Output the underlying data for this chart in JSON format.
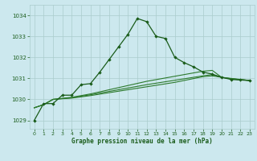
{
  "title": "Graphe pression niveau de la mer (hPa)",
  "bg_color": "#cce8ee",
  "grid_color": "#aacccc",
  "line_color_main": "#1a5c1a",
  "line_color_aux": "#2d7a2d",
  "xlim": [
    -0.5,
    23.5
  ],
  "ylim": [
    1028.6,
    1034.5
  ],
  "yticks": [
    1029,
    1030,
    1031,
    1032,
    1033,
    1034
  ],
  "xticks": [
    0,
    1,
    2,
    3,
    4,
    5,
    6,
    7,
    8,
    9,
    10,
    11,
    12,
    13,
    14,
    15,
    16,
    17,
    18,
    19,
    20,
    21,
    22,
    23
  ],
  "series1_x": [
    0,
    1,
    2,
    3,
    4,
    5,
    6,
    7,
    8,
    9,
    10,
    11,
    12,
    13,
    14,
    15,
    16,
    17,
    18,
    19,
    20,
    21,
    22,
    23
  ],
  "series1_y": [
    1029.0,
    1029.8,
    1029.8,
    1030.2,
    1030.2,
    1030.7,
    1030.75,
    1031.3,
    1031.9,
    1032.5,
    1033.1,
    1033.85,
    1033.7,
    1033.0,
    1032.9,
    1032.0,
    1031.75,
    1031.55,
    1031.3,
    1031.2,
    1031.05,
    1030.95,
    1030.92,
    1030.9
  ],
  "series2_x": [
    0,
    1,
    2,
    3,
    4,
    5,
    6,
    7,
    8,
    9,
    10,
    11,
    12,
    13,
    14,
    15,
    16,
    17,
    18,
    19,
    20,
    21,
    22,
    23
  ],
  "series2_y": [
    1029.6,
    1029.75,
    1030.0,
    1030.05,
    1030.1,
    1030.18,
    1030.26,
    1030.36,
    1030.46,
    1030.56,
    1030.66,
    1030.76,
    1030.86,
    1030.94,
    1031.02,
    1031.1,
    1031.18,
    1031.26,
    1031.34,
    1031.38,
    1031.05,
    1031.0,
    1030.95,
    1030.9
  ],
  "series3_x": [
    0,
    1,
    2,
    3,
    4,
    5,
    6,
    7,
    8,
    9,
    10,
    11,
    12,
    13,
    14,
    15,
    16,
    17,
    18,
    19,
    20,
    21,
    22,
    23
  ],
  "series3_y": [
    1029.6,
    1029.75,
    1030.0,
    1030.04,
    1030.08,
    1030.15,
    1030.22,
    1030.3,
    1030.38,
    1030.46,
    1030.54,
    1030.62,
    1030.7,
    1030.77,
    1030.84,
    1030.91,
    1030.98,
    1031.05,
    1031.12,
    1031.18,
    1031.05,
    1030.98,
    1030.94,
    1030.9
  ],
  "series4_x": [
    0,
    1,
    2,
    3,
    4,
    5,
    6,
    7,
    8,
    9,
    10,
    11,
    12,
    13,
    14,
    15,
    16,
    17,
    18,
    19,
    20,
    21,
    22,
    23
  ],
  "series4_y": [
    1029.6,
    1029.75,
    1030.0,
    1030.03,
    1030.06,
    1030.12,
    1030.18,
    1030.25,
    1030.32,
    1030.39,
    1030.46,
    1030.53,
    1030.6,
    1030.67,
    1030.74,
    1030.81,
    1030.9,
    1030.99,
    1031.08,
    1031.12,
    1031.05,
    1030.98,
    1030.94,
    1030.9
  ]
}
